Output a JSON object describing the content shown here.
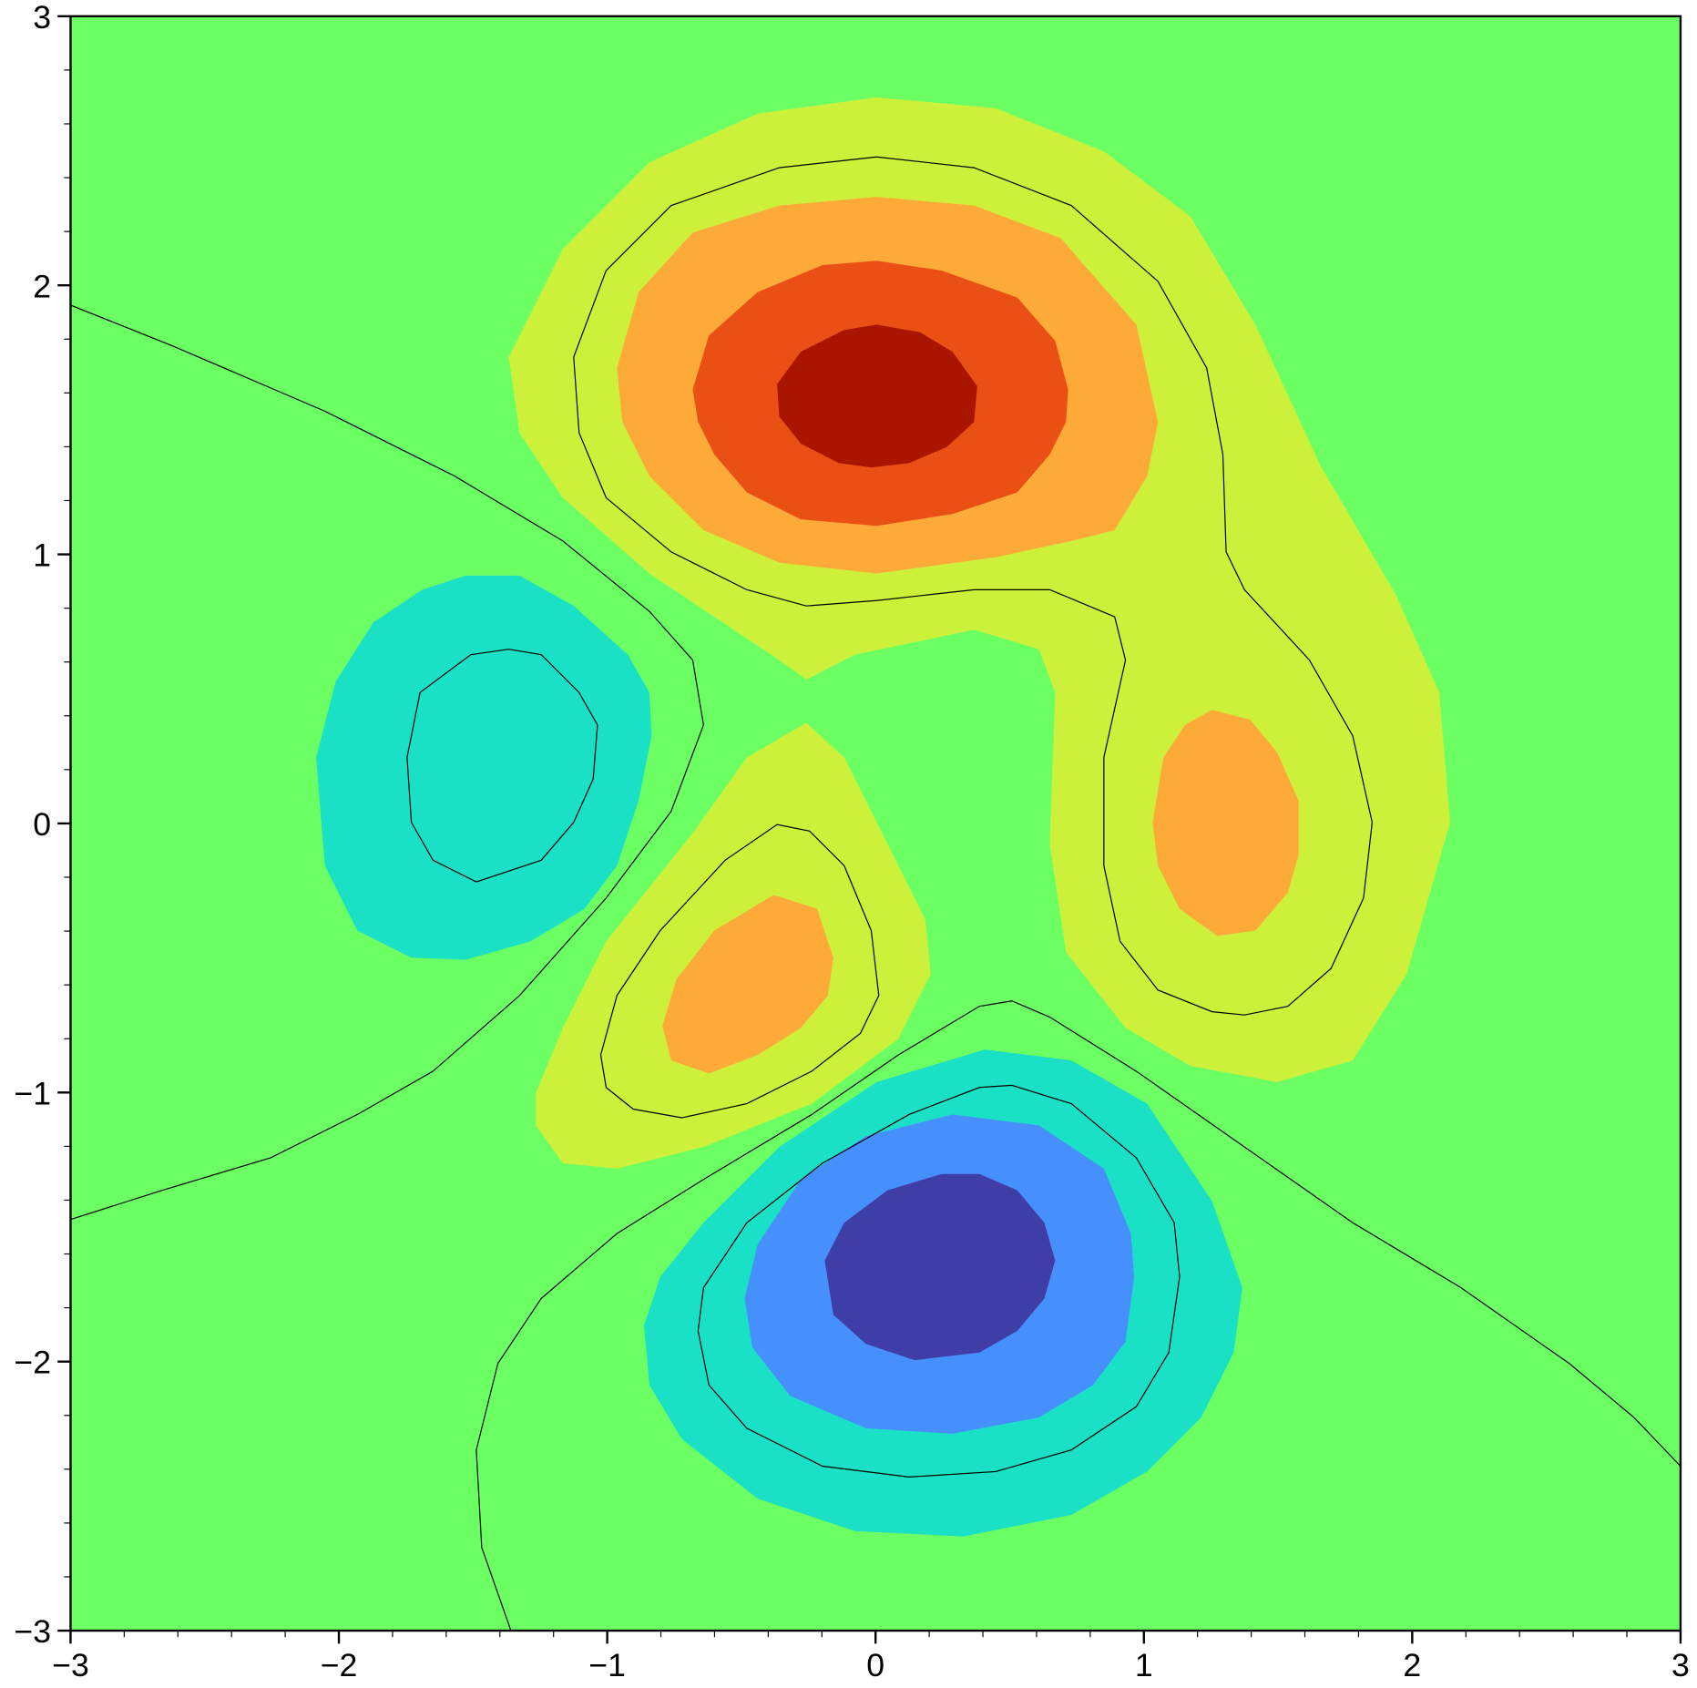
{
  "chart_data": {
    "type": "contour",
    "xlim": [
      -3,
      3
    ],
    "ylim": [
      -3,
      3
    ],
    "xticks": [
      {
        "value": -3,
        "label": "−3"
      },
      {
        "value": -2,
        "label": "−2"
      },
      {
        "value": -1,
        "label": "−1"
      },
      0,
      1,
      2,
      3
    ],
    "yticks": [
      {
        "value": -3,
        "label": "−3"
      },
      {
        "value": -2,
        "label": "−2"
      },
      {
        "value": -1,
        "label": "−1"
      },
      0,
      1,
      2,
      3
    ]
  }
}
